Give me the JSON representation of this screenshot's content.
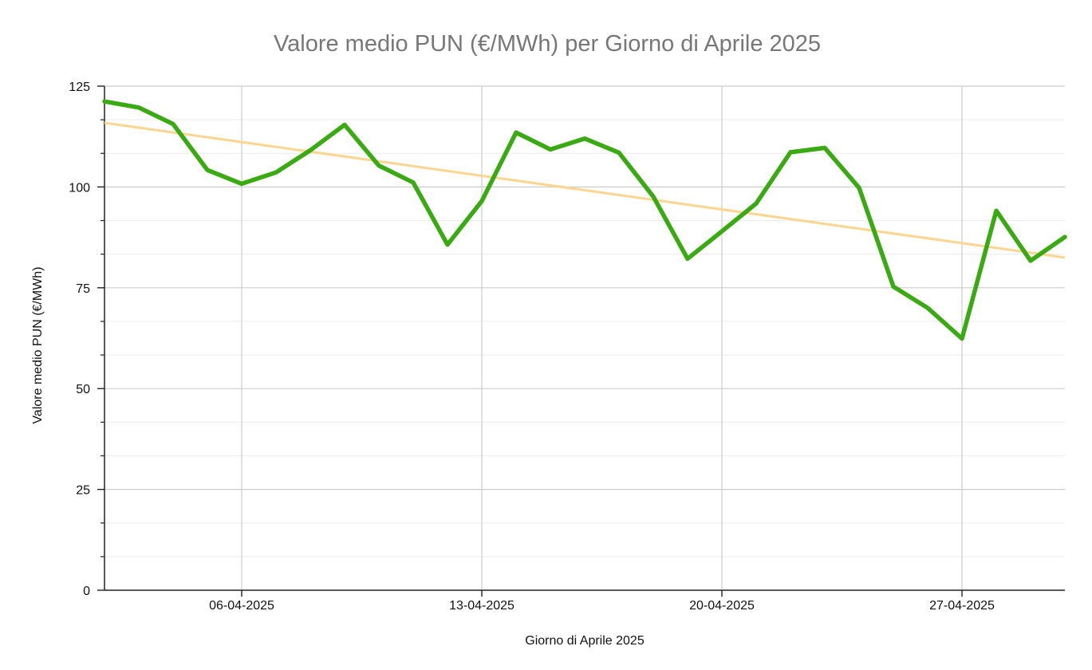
{
  "chart_data": {
    "type": "line",
    "title": "Valore medio PUN (€/MWh) per Giorno di Aprile 2025",
    "xlabel": "Giorno di Aprile 2025",
    "ylabel": "Valore medio PUN (€/MWh)",
    "ylim": [
      0,
      125
    ],
    "yticks": [
      0,
      25,
      50,
      75,
      100,
      125
    ],
    "x_range": [
      "2025-04-02",
      "2025-04-30"
    ],
    "xticks": [
      "06-04-2025",
      "13-04-2025",
      "20-04-2025",
      "27-04-2025"
    ],
    "xtick_dates": [
      "2025-04-06",
      "2025-04-13",
      "2025-04-20",
      "2025-04-27"
    ],
    "grid": true,
    "series": [
      {
        "color": "#3aaa12",
        "points": [
          {
            "date": "2025-04-02",
            "value": 121.2
          },
          {
            "date": "2025-04-03",
            "value": 119.7
          },
          {
            "date": "2025-04-04",
            "value": 115.6
          },
          {
            "date": "2025-04-05",
            "value": 104.2
          },
          {
            "date": "2025-04-06",
            "value": 100.8
          },
          {
            "date": "2025-04-07",
            "value": 103.6
          },
          {
            "date": "2025-04-08",
            "value": 109.1
          },
          {
            "date": "2025-04-09",
            "value": 115.4
          },
          {
            "date": "2025-04-10",
            "value": 105.3
          },
          {
            "date": "2025-04-11",
            "value": 101.1
          },
          {
            "date": "2025-04-12",
            "value": 85.7
          },
          {
            "date": "2025-04-13",
            "value": 96.5
          },
          {
            "date": "2025-04-14",
            "value": 113.5
          },
          {
            "date": "2025-04-15",
            "value": 109.3
          },
          {
            "date": "2025-04-16",
            "value": 112.0
          },
          {
            "date": "2025-04-17",
            "value": 108.5
          },
          {
            "date": "2025-04-18",
            "value": 97.6
          },
          {
            "date": "2025-04-19",
            "value": 82.2
          },
          {
            "date": "2025-04-20",
            "value": 89.0
          },
          {
            "date": "2025-04-21",
            "value": 95.9
          },
          {
            "date": "2025-04-22",
            "value": 108.6
          },
          {
            "date": "2025-04-23",
            "value": 109.7
          },
          {
            "date": "2025-04-24",
            "value": 99.8
          },
          {
            "date": "2025-04-25",
            "value": 75.3
          },
          {
            "date": "2025-04-26",
            "value": 70.0
          },
          {
            "date": "2025-04-27",
            "value": 62.4
          },
          {
            "date": "2025-04-28",
            "value": 94.1
          },
          {
            "date": "2025-04-29",
            "value": 81.7
          },
          {
            "date": "2025-04-30",
            "value": 87.6
          }
        ]
      },
      {
        "type": "trendline",
        "color": "#fcd690",
        "points": [
          {
            "date": "2025-04-02",
            "value": 115.9
          },
          {
            "date": "2025-04-30",
            "value": 82.5
          }
        ]
      }
    ]
  }
}
